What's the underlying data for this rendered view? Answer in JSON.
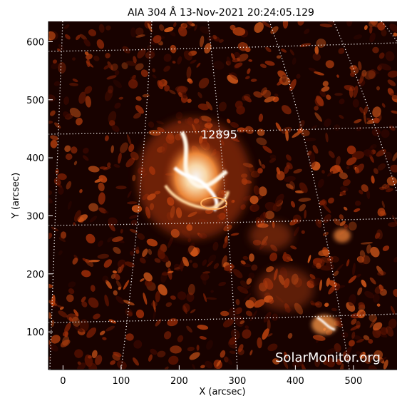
{
  "title": "AIA 304 Å 13-Nov-2021 20:24:05.129",
  "region_label": "12895",
  "watermark": "SolarMonitor.org",
  "chart_data": {
    "type": "heatmap",
    "xlabel": "X (arcsec)",
    "ylabel": "Y (arcsec)",
    "xlim": [
      -25,
      575
    ],
    "ylim": [
      35,
      635
    ],
    "x_ticks": [
      "0",
      "100",
      "200",
      "300",
      "400",
      "500"
    ],
    "y_ticks": [
      "100",
      "200",
      "300",
      "400",
      "500",
      "600"
    ],
    "grid": "dotted heliographic grid, white",
    "colormap": "sdoaia304 (black-red-orange-white)"
  },
  "colors": {
    "background": "#ffffff",
    "plot_bg": "#180200",
    "grid": "#ffffff",
    "text": "#000000"
  }
}
